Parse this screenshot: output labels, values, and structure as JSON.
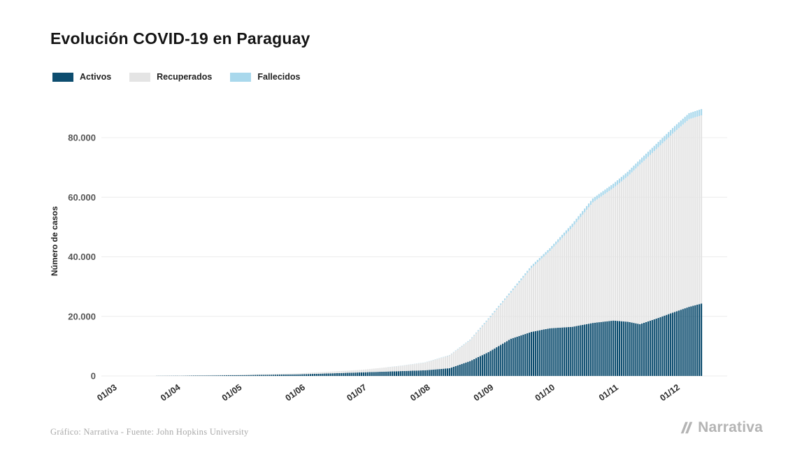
{
  "title": "Evolución COVID-19 en Paraguay",
  "legend": [
    {
      "label": "Activos",
      "color": "#0d4d6f"
    },
    {
      "label": "Recuperados",
      "color": "#e4e4e4"
    },
    {
      "label": "Fallecidos",
      "color": "#a9d8ec"
    }
  ],
  "footer": {
    "credit": "Gráfico: Narrativa - Fuente: John Hopkins University",
    "brand": "Narrativa"
  },
  "chart_data": {
    "type": "area",
    "stacked": true,
    "title": "Evolución COVID-19 en Paraguay",
    "xlabel": "",
    "ylabel": "Número de casos",
    "ylim": [
      0,
      90000
    ],
    "grid": "horizontal",
    "legend_position": "top-left",
    "yticks": [
      {
        "value": 0,
        "label": "0"
      },
      {
        "value": 20000,
        "label": "20.000"
      },
      {
        "value": 40000,
        "label": "40.000"
      },
      {
        "value": 60000,
        "label": "60.000"
      },
      {
        "value": 80000,
        "label": "80.000"
      }
    ],
    "xticks": [
      {
        "day": 0,
        "label": "01/03"
      },
      {
        "day": 31,
        "label": "01/04"
      },
      {
        "day": 61,
        "label": "01/05"
      },
      {
        "day": 92,
        "label": "01/06"
      },
      {
        "day": 122,
        "label": "01/07"
      },
      {
        "day": 153,
        "label": "01/08"
      },
      {
        "day": 184,
        "label": "01/09"
      },
      {
        "day": 214,
        "label": "01/10"
      },
      {
        "day": 245,
        "label": "01/11"
      },
      {
        "day": 275,
        "label": "01/12"
      }
    ],
    "end_day": 288,
    "series": [
      {
        "name": "Activos",
        "color": "#0d4d6f",
        "points": [
          {
            "day": 0,
            "value": 0
          },
          {
            "day": 10,
            "value": 5
          },
          {
            "day": 31,
            "value": 60
          },
          {
            "day": 61,
            "value": 250
          },
          {
            "day": 92,
            "value": 550
          },
          {
            "day": 122,
            "value": 1200
          },
          {
            "day": 140,
            "value": 1600
          },
          {
            "day": 153,
            "value": 1900
          },
          {
            "day": 165,
            "value": 2600
          },
          {
            "day": 175,
            "value": 5000
          },
          {
            "day": 184,
            "value": 8000
          },
          {
            "day": 195,
            "value": 12500
          },
          {
            "day": 205,
            "value": 14800
          },
          {
            "day": 214,
            "value": 16000
          },
          {
            "day": 225,
            "value": 16500
          },
          {
            "day": 235,
            "value": 17800
          },
          {
            "day": 245,
            "value": 18600
          },
          {
            "day": 252,
            "value": 18200
          },
          {
            "day": 258,
            "value": 17400
          },
          {
            "day": 265,
            "value": 19000
          },
          {
            "day": 275,
            "value": 21500
          },
          {
            "day": 282,
            "value": 23200
          },
          {
            "day": 288,
            "value": 24300
          }
        ]
      },
      {
        "name": "Recuperados",
        "color": "#e4e4e4",
        "points": [
          {
            "day": 0,
            "value": 0
          },
          {
            "day": 10,
            "value": 2
          },
          {
            "day": 31,
            "value": 30
          },
          {
            "day": 61,
            "value": 180
          },
          {
            "day": 92,
            "value": 330
          },
          {
            "day": 122,
            "value": 850
          },
          {
            "day": 140,
            "value": 1700
          },
          {
            "day": 153,
            "value": 2600
          },
          {
            "day": 165,
            "value": 4300
          },
          {
            "day": 175,
            "value": 7000
          },
          {
            "day": 184,
            "value": 11000
          },
          {
            "day": 195,
            "value": 15500
          },
          {
            "day": 205,
            "value": 21500
          },
          {
            "day": 214,
            "value": 26000
          },
          {
            "day": 225,
            "value": 33500
          },
          {
            "day": 235,
            "value": 40500
          },
          {
            "day": 245,
            "value": 44500
          },
          {
            "day": 252,
            "value": 48800
          },
          {
            "day": 258,
            "value": 53600
          },
          {
            "day": 265,
            "value": 56500
          },
          {
            "day": 275,
            "value": 60500
          },
          {
            "day": 282,
            "value": 63000
          },
          {
            "day": 288,
            "value": 63200
          }
        ]
      },
      {
        "name": "Fallecidos",
        "color": "#a9d8ec",
        "points": [
          {
            "day": 0,
            "value": 0
          },
          {
            "day": 10,
            "value": 1
          },
          {
            "day": 31,
            "value": 8
          },
          {
            "day": 61,
            "value": 11
          },
          {
            "day": 92,
            "value": 15
          },
          {
            "day": 122,
            "value": 25
          },
          {
            "day": 140,
            "value": 40
          },
          {
            "day": 153,
            "value": 60
          },
          {
            "day": 165,
            "value": 110
          },
          {
            "day": 175,
            "value": 200
          },
          {
            "day": 184,
            "value": 350
          },
          {
            "day": 195,
            "value": 520
          },
          {
            "day": 205,
            "value": 700
          },
          {
            "day": 214,
            "value": 900
          },
          {
            "day": 225,
            "value": 1100
          },
          {
            "day": 235,
            "value": 1300
          },
          {
            "day": 245,
            "value": 1450
          },
          {
            "day": 252,
            "value": 1550
          },
          {
            "day": 258,
            "value": 1650
          },
          {
            "day": 265,
            "value": 1750
          },
          {
            "day": 275,
            "value": 1900
          },
          {
            "day": 282,
            "value": 2030
          },
          {
            "day": 288,
            "value": 2100
          }
        ]
      }
    ]
  }
}
